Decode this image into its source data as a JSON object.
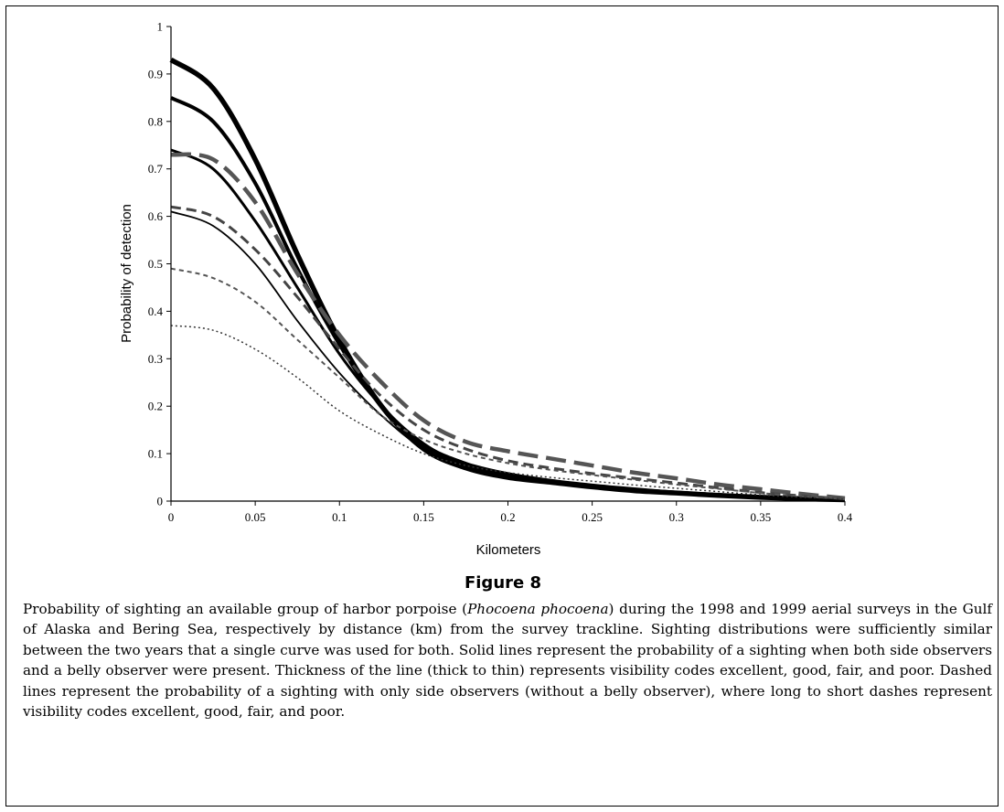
{
  "figure": {
    "title": "Figure 8",
    "caption_parts": {
      "before_species": "Probability of sighting an available group of harbor porpoise (",
      "species": "Phocoena phocoena",
      "after_species": ") during the 1998 and 1999 aerial surveys in the Gulf of Alaska and Bering Sea, respectively by distance (km) from the survey trackline. Sighting distributions were sufficiently similar between the two years that a single curve was used for both. Solid lines represent the probability of a sighting when both side observers and a belly observer were present. Thickness of the line (thick to thin) represents visibility codes excellent, good, fair, and poor. Dashed lines represent the probability of a sighting with only side observers (without a belly observer), where long to short dashes represent visibility codes excellent, good, fair, and poor."
    }
  },
  "chart_data": {
    "type": "line",
    "xlabel": "Kilometers",
    "ylabel": "Probability of detection",
    "xlim": [
      0,
      0.4
    ],
    "ylim": [
      0,
      1
    ],
    "x_ticks": [
      "0",
      "0.05",
      "0.1",
      "0.15",
      "0.2",
      "0.25",
      "0.3",
      "0.35",
      "0.4"
    ],
    "y_ticks": [
      "0",
      "0.1",
      "0.2",
      "0.3",
      "0.4",
      "0.5",
      "0.6",
      "0.7",
      "0.8",
      "0.9",
      "1"
    ],
    "grid": false,
    "legend": "none",
    "x": [
      0,
      0.025,
      0.05,
      0.075,
      0.1,
      0.125,
      0.15,
      0.175,
      0.2,
      0.225,
      0.25,
      0.275,
      0.3,
      0.325,
      0.35,
      0.375,
      0.4
    ],
    "series": [
      {
        "style": "solid",
        "color": "#000000",
        "width": 5.5,
        "values": [
          0.93,
          0.87,
          0.72,
          0.52,
          0.34,
          0.2,
          0.11,
          0.07,
          0.05,
          0.04,
          0.03,
          0.022,
          0.017,
          0.012,
          0.008,
          0.005,
          0.003
        ]
      },
      {
        "style": "solid",
        "color": "#000000",
        "width": 4,
        "values": [
          0.85,
          0.8,
          0.67,
          0.49,
          0.33,
          0.2,
          0.12,
          0.075,
          0.055,
          0.042,
          0.032,
          0.024,
          0.018,
          0.013,
          0.009,
          0.006,
          0.004
        ]
      },
      {
        "style": "solid",
        "color": "#000000",
        "width": 3,
        "values": [
          0.74,
          0.7,
          0.59,
          0.45,
          0.31,
          0.2,
          0.12,
          0.08,
          0.058,
          0.044,
          0.034,
          0.026,
          0.019,
          0.014,
          0.009,
          0.006,
          0.004
        ]
      },
      {
        "style": "solid",
        "color": "#000000",
        "width": 1.8,
        "values": [
          0.61,
          0.58,
          0.5,
          0.38,
          0.27,
          0.18,
          0.11,
          0.075,
          0.055,
          0.042,
          0.032,
          0.024,
          0.018,
          0.013,
          0.009,
          0.006,
          0.004
        ]
      },
      {
        "style": "dashed",
        "dash": "22 9",
        "color": "#555555",
        "width": 4.5,
        "values": [
          0.73,
          0.72,
          0.63,
          0.48,
          0.35,
          0.25,
          0.17,
          0.125,
          0.105,
          0.09,
          0.075,
          0.06,
          0.048,
          0.035,
          0.025,
          0.015,
          0.006
        ]
      },
      {
        "style": "dashed",
        "dash": "11 6",
        "color": "#444444",
        "width": 3,
        "values": [
          0.62,
          0.6,
          0.53,
          0.43,
          0.32,
          0.22,
          0.15,
          0.11,
          0.085,
          0.07,
          0.058,
          0.048,
          0.038,
          0.028,
          0.018,
          0.011,
          0.005
        ]
      },
      {
        "style": "dashed",
        "dash": "5 4",
        "color": "#555555",
        "width": 2,
        "values": [
          0.49,
          0.47,
          0.42,
          0.34,
          0.26,
          0.18,
          0.13,
          0.1,
          0.08,
          0.066,
          0.055,
          0.045,
          0.035,
          0.026,
          0.017,
          0.01,
          0.005
        ]
      },
      {
        "style": "dotted",
        "dash": "2 3",
        "color": "#333333",
        "width": 1.5,
        "values": [
          0.37,
          0.36,
          0.32,
          0.26,
          0.19,
          0.14,
          0.1,
          0.075,
          0.06,
          0.05,
          0.042,
          0.034,
          0.027,
          0.02,
          0.013,
          0.008,
          0.004
        ]
      }
    ]
  }
}
